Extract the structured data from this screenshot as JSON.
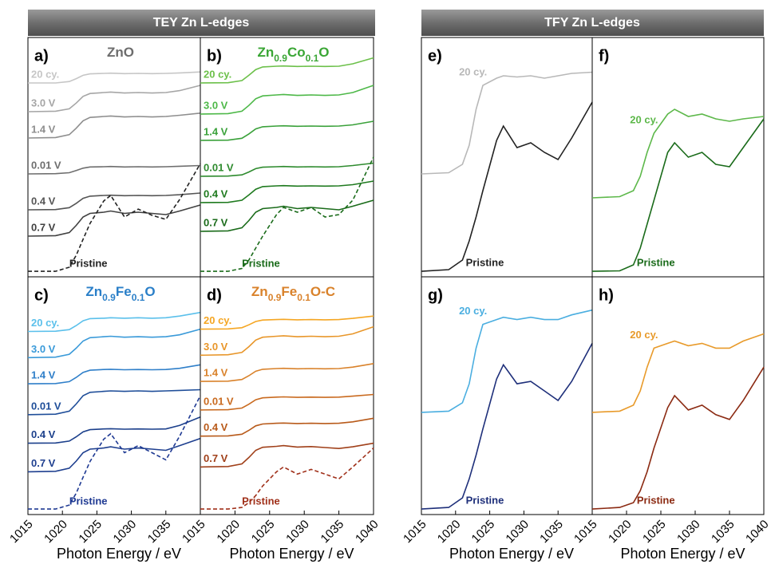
{
  "headers": [
    "TEY Zn L-edges",
    "TFY Zn L-edges"
  ],
  "chart_data": [
    {
      "type": "line",
      "title": "a)",
      "subtitle": "ZnO",
      "subtitle_color": "#6d6d6d",
      "x": [
        1015,
        1019,
        1021,
        1022,
        1023,
        1024,
        1026,
        1027,
        1029,
        1031,
        1033,
        1035,
        1037,
        1040
      ],
      "xlim": [
        1015,
        1040
      ],
      "ylim": [
        0,
        100
      ],
      "series": [
        {
          "name": "20 cy.",
          "color": "#c6c6c6",
          "values": [
            81,
            81,
            81.6,
            82.8,
            84.2,
            84.8,
            85,
            85.1,
            84.9,
            85,
            84.9,
            85,
            85.2,
            85.6
          ]
        },
        {
          "name": "3.0 V",
          "color": "#a6a6a6",
          "values": [
            69,
            69.2,
            70.2,
            72.6,
            75.4,
            76.6,
            77,
            77.2,
            76.8,
            77,
            76.8,
            77,
            77.8,
            80
          ]
        },
        {
          "name": "1.4 V",
          "color": "#8e8e8e",
          "values": [
            58,
            58.2,
            59.4,
            62.1,
            65.2,
            66.6,
            67,
            67.2,
            66.8,
            67,
            66.8,
            67,
            67.5,
            68.4
          ]
        },
        {
          "name": "0.01 V",
          "color": "#6e6e6e",
          "values": [
            43,
            43.1,
            43.5,
            44.4,
            45.4,
            45.9,
            46,
            46.1,
            45.9,
            46,
            45.9,
            46,
            46.2,
            46.5
          ]
        },
        {
          "name": "0.4 V",
          "color": "#555555",
          "values": [
            28,
            28.1,
            28.9,
            30.7,
            32.8,
            33.7,
            34,
            34.1,
            33.9,
            34,
            33.9,
            34,
            34.3,
            35
          ]
        },
        {
          "name": "0.7 V",
          "color": "#404040",
          "values": [
            17,
            17.2,
            18.5,
            21.5,
            25,
            26.5,
            27,
            27.5,
            26.5,
            27,
            26.5,
            26,
            27.5,
            30
          ]
        },
        {
          "name": "Pristine",
          "color": "#222222",
          "dash": true,
          "values": [
            2.3,
            2.3,
            4,
            9,
            15.7,
            22.3,
            31.7,
            34,
            25,
            28.3,
            25.7,
            24,
            32.3,
            47.3
          ]
        }
      ]
    },
    {
      "type": "line",
      "title": "b)",
      "subtitle": "Zn0.9Co0.1O",
      "subtitle_color": "#3aa635",
      "x": [
        1015,
        1019,
        1021,
        1022,
        1023,
        1024,
        1026,
        1027,
        1029,
        1031,
        1033,
        1035,
        1037,
        1040
      ],
      "xlim": [
        1015,
        1040
      ],
      "ylim": [
        0,
        100
      ],
      "series": [
        {
          "name": "20 cy.",
          "color": "#6cc04a",
          "values": [
            81,
            81.1,
            82,
            84.2,
            86.6,
            87.7,
            88,
            88.1,
            87.9,
            88,
            87.9,
            88,
            89,
            91.5
          ]
        },
        {
          "name": "3.0 V",
          "color": "#4db848",
          "values": [
            68,
            68.2,
            69.2,
            71.6,
            74.4,
            75.6,
            76,
            76.2,
            75.8,
            76,
            75.8,
            76,
            77,
            80
          ]
        },
        {
          "name": "1.4 V",
          "color": "#3aa13a",
          "values": [
            57,
            57.1,
            57.9,
            59.7,
            61.8,
            62.7,
            63,
            63.1,
            62.9,
            63,
            62.9,
            63,
            63.5,
            65
          ]
        },
        {
          "name": "0.01 V",
          "color": "#2e8b2e",
          "values": [
            42,
            42.1,
            42.6,
            43.8,
            45.2,
            45.8,
            46,
            46.1,
            45.9,
            46,
            45.9,
            46,
            46.5,
            47.5
          ]
        },
        {
          "name": "0.4 V",
          "color": "#1f7a1f",
          "values": [
            31,
            31.1,
            32,
            34.2,
            36.6,
            37.7,
            38,
            38.1,
            37.9,
            38,
            37.9,
            38,
            38.5,
            40
          ]
        },
        {
          "name": "0.7 V",
          "color": "#1a6b1a",
          "values": [
            19,
            19.2,
            20.5,
            23.5,
            27,
            28.5,
            29,
            29.5,
            28.5,
            29,
            28.5,
            28,
            29.5,
            32
          ]
        },
        {
          "name": "Pristine",
          "color": "#1a6b1a",
          "dash": true,
          "values": [
            2.3,
            2.3,
            3.5,
            7,
            12,
            17,
            26,
            29,
            27,
            29,
            25,
            26,
            32,
            50
          ]
        }
      ]
    },
    {
      "type": "line",
      "title": "c)",
      "subtitle": "Zn0.9Fe0.1O",
      "subtitle_color": "#2a7fc8",
      "x": [
        1015,
        1019,
        1021,
        1022,
        1023,
        1024,
        1026,
        1027,
        1029,
        1031,
        1033,
        1035,
        1037,
        1040
      ],
      "xlim": [
        1015,
        1040
      ],
      "ylim": [
        0,
        100
      ],
      "xticks": [
        1015,
        1020,
        1025,
        1030,
        1035
      ],
      "xlabel": "Photon Energy / eV",
      "series": [
        {
          "name": "20 cy.",
          "color": "#5bc0eb",
          "values": [
            77,
            77.1,
            77.8,
            79.5,
            81.5,
            82.4,
            82.6,
            82.8,
            82.6,
            82.8,
            82.6,
            82.8,
            83.5,
            85
          ]
        },
        {
          "name": "3.0 V",
          "color": "#3a9ad9",
          "values": [
            66,
            66.2,
            67.4,
            70,
            73,
            74.4,
            74.8,
            75,
            74.6,
            74.8,
            74.6,
            74.8,
            75.6,
            78
          ]
        },
        {
          "name": "1.4 V",
          "color": "#2f7fc9",
          "values": [
            55,
            55.1,
            55.9,
            57.7,
            59.8,
            60.7,
            61,
            61.1,
            60.9,
            61,
            60.9,
            61,
            61.5,
            63
          ]
        },
        {
          "name": "0.01 V",
          "color": "#1f4e99",
          "values": [
            42,
            42.2,
            43.5,
            46.5,
            50,
            51.4,
            51.8,
            52,
            51.8,
            52,
            51.8,
            52,
            52.2,
            52.5
          ]
        },
        {
          "name": "0.4 V",
          "color": "#1b3f8b",
          "values": [
            30,
            30.1,
            30.9,
            32.7,
            34.8,
            35.7,
            36,
            36.1,
            35.9,
            36,
            35.9,
            36,
            37.5,
            41
          ]
        },
        {
          "name": "0.7 V",
          "color": "#1e3f8f",
          "values": [
            18,
            18.2,
            19.5,
            22.5,
            26,
            27.5,
            28,
            28.5,
            27.5,
            28,
            27.5,
            27,
            29,
            32
          ]
        },
        {
          "name": "Pristine",
          "color": "#1f3a93",
          "dash": true,
          "values": [
            2.3,
            2.3,
            4,
            9,
            15.7,
            22.3,
            31.7,
            34,
            26,
            29,
            26,
            23,
            33,
            50
          ]
        }
      ]
    },
    {
      "type": "line",
      "title": "d)",
      "subtitle": "Zn0.9Fe0.1O-C",
      "subtitle_color": "#d9822b",
      "x": [
        1015,
        1019,
        1021,
        1022,
        1023,
        1024,
        1026,
        1027,
        1029,
        1031,
        1033,
        1035,
        1037,
        1040
      ],
      "xlim": [
        1015,
        1040
      ],
      "ylim": [
        0,
        100
      ],
      "xticks": [
        1015,
        1020,
        1025,
        1030,
        1035,
        1040
      ],
      "xlabel": "Photon Energy / eV",
      "series": [
        {
          "name": "20 cy.",
          "color": "#f5a623",
          "values": [
            78,
            78.1,
            78.6,
            79.8,
            81.2,
            81.8,
            82,
            82.1,
            81.9,
            82,
            81.9,
            82,
            82.5,
            83.5
          ]
        },
        {
          "name": "3.0 V",
          "color": "#e8962a",
          "values": [
            67,
            67.2,
            68.2,
            70.6,
            73.4,
            74.6,
            75,
            75.2,
            74.8,
            75,
            74.8,
            75,
            76,
            79
          ]
        },
        {
          "name": "1.4 V",
          "color": "#d9822b",
          "values": [
            56,
            56.1,
            56.8,
            58.4,
            60.3,
            61.1,
            61.4,
            61.5,
            61.3,
            61.4,
            61.3,
            61.4,
            62,
            63.5
          ]
        },
        {
          "name": "0.01 V",
          "color": "#c96a1f",
          "values": [
            44,
            44.1,
            44.8,
            46.4,
            48.3,
            49.1,
            49.4,
            49.5,
            49.3,
            49.4,
            49.3,
            49.4,
            49.8,
            50.5
          ]
        },
        {
          "name": "0.4 V",
          "color": "#b85a1a",
          "values": [
            33,
            33.1,
            33.8,
            35.4,
            37.3,
            38.1,
            38.4,
            38.5,
            38.3,
            38.4,
            38.3,
            38.4,
            39,
            40.5
          ]
        },
        {
          "name": "0.7 V",
          "color": "#a0401a",
          "values": [
            20,
            20.2,
            21.3,
            24,
            27,
            28.3,
            28.7,
            29,
            28.4,
            28.6,
            28.2,
            27.8,
            28.5,
            30
          ]
        },
        {
          "name": "Pristine",
          "color": "#a0301a",
          "dash": true,
          "values": [
            2.3,
            2.3,
            3,
            5,
            8,
            12,
            18,
            20,
            17,
            19,
            17,
            15,
            20,
            28
          ]
        }
      ]
    },
    {
      "type": "line",
      "title": "e)",
      "x": [
        1015,
        1019,
        1021,
        1022,
        1023,
        1024,
        1026,
        1027,
        1029,
        1031,
        1033,
        1035,
        1037,
        1040
      ],
      "xlim": [
        1015,
        1040
      ],
      "ylim": [
        0,
        100
      ],
      "series": [
        {
          "name": "20 cy.",
          "color": "#b8b8b8",
          "values": [
            43,
            43.5,
            47,
            55,
            70,
            80,
            83,
            84,
            83.5,
            84,
            83,
            84,
            85,
            85.5
          ]
        },
        {
          "name": "Pristine",
          "color": "#222222",
          "values": [
            2.3,
            3,
            7,
            15,
            25,
            36,
            57,
            63,
            54,
            56,
            52,
            49,
            58,
            73
          ]
        }
      ]
    },
    {
      "type": "line",
      "title": "f)",
      "x": [
        1015,
        1019,
        1021,
        1022,
        1023,
        1024,
        1026,
        1027,
        1029,
        1031,
        1033,
        1035,
        1037,
        1040
      ],
      "xlim": [
        1015,
        1040
      ],
      "ylim": [
        0,
        100
      ],
      "series": [
        {
          "name": "20 cy.",
          "color": "#5db84a",
          "values": [
            33,
            33.5,
            36,
            42,
            52,
            60,
            68,
            70,
            67,
            68,
            66,
            65,
            66,
            67
          ]
        },
        {
          "name": "Pristine",
          "color": "#1a6b1a",
          "values": [
            2.3,
            2.5,
            5,
            12,
            22,
            32,
            52,
            56,
            50,
            52,
            47,
            46,
            54,
            66
          ]
        }
      ]
    },
    {
      "type": "line",
      "title": "g)",
      "x": [
        1015,
        1019,
        1021,
        1022,
        1023,
        1024,
        1026,
        1027,
        1029,
        1031,
        1033,
        1035,
        1037,
        1040
      ],
      "xlim": [
        1015,
        1040
      ],
      "ylim": [
        0,
        100
      ],
      "xticks": [
        1015,
        1020,
        1025,
        1030,
        1035
      ],
      "xlabel": "Photon Energy / eV",
      "series": [
        {
          "name": "20 cy.",
          "color": "#4aaee0",
          "values": [
            43,
            43.5,
            47,
            55,
            70,
            80,
            82,
            83,
            82,
            83,
            82,
            82,
            84,
            86
          ]
        },
        {
          "name": "Pristine",
          "color": "#1e2f7a",
          "values": [
            2.3,
            3,
            7,
            15,
            25,
            36,
            57,
            63,
            55,
            56,
            52,
            48,
            56,
            72
          ]
        }
      ]
    },
    {
      "type": "line",
      "title": "h)",
      "x": [
        1015,
        1019,
        1021,
        1022,
        1023,
        1024,
        1026,
        1027,
        1029,
        1031,
        1033,
        1035,
        1037,
        1040
      ],
      "xlim": [
        1015,
        1040
      ],
      "ylim": [
        0,
        100
      ],
      "xticks": [
        1015,
        1020,
        1025,
        1030,
        1035,
        1040
      ],
      "xlabel": "Photon Energy / eV",
      "series": [
        {
          "name": "20 cy.",
          "color": "#e89a2a",
          "values": [
            43,
            43.5,
            46,
            52,
            62,
            70,
            72,
            73,
            71,
            72,
            70,
            70,
            73,
            76
          ]
        },
        {
          "name": "Pristine",
          "color": "#8b2a12",
          "values": [
            2.3,
            3,
            5,
            10,
            18,
            28,
            45,
            50,
            44,
            46,
            42,
            40,
            48,
            62
          ]
        }
      ]
    }
  ]
}
